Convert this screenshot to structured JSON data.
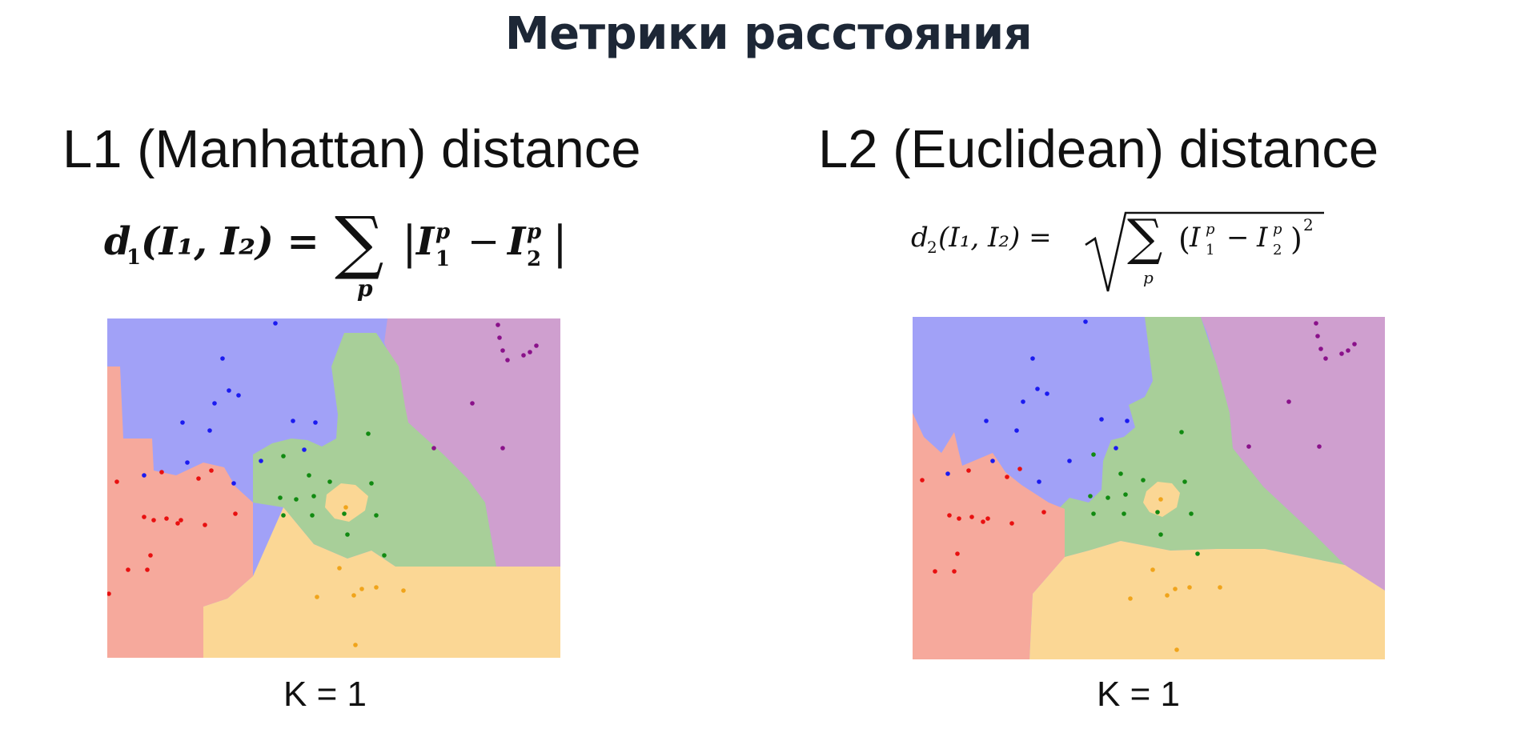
{
  "title": "Метрики расстояния",
  "panels": [
    {
      "heading": "L1 (Manhattan) distance",
      "formula": {
        "lhs": "d",
        "lhs_sub": "1",
        "args": "(I₁, I₂) =",
        "sum": "∑",
        "sum_sub": "p",
        "body_left": "|",
        "term1": "I",
        "term1_sup": "p",
        "term1_sub": "1",
        "minus": "−",
        "term2": "I",
        "term2_sup": "p",
        "term2_sub": "2",
        "body_right": "|"
      },
      "k_label": "K = 1",
      "colors": {
        "blue": "#a1a1f7",
        "red": "#f6a99c",
        "green": "#a8cf99",
        "purple": "#cf9fcf",
        "yellow": "#fbd795",
        "orange": "#fbd795"
      }
    },
    {
      "heading": "L2 (Euclidean) distance",
      "formula": {
        "lhs": "d",
        "lhs_sub": "2",
        "args": "(I₁, I₂) =",
        "sum": "∑",
        "sum_sub": "p",
        "term1": "I",
        "term1_sup": "p",
        "term1_sub": "1",
        "minus": "−",
        "term2": "I",
        "term2_sup": "p",
        "term2_sub": "2",
        "power": "2"
      },
      "k_label": "K = 1"
    }
  ],
  "region_colors": {
    "blue": "#a1a1f7",
    "red": "#f6a99c",
    "green": "#a8cf99",
    "purple": "#cf9fcf",
    "yellow": "#fbd795",
    "orange": "#fbd795"
  },
  "point_colors": {
    "blue": "#1b1bf0",
    "red": "#e81010",
    "green": "#118a11",
    "purple": "#8a118a",
    "yellow": "#f0a41b",
    "orange": "#f0a41b"
  }
}
